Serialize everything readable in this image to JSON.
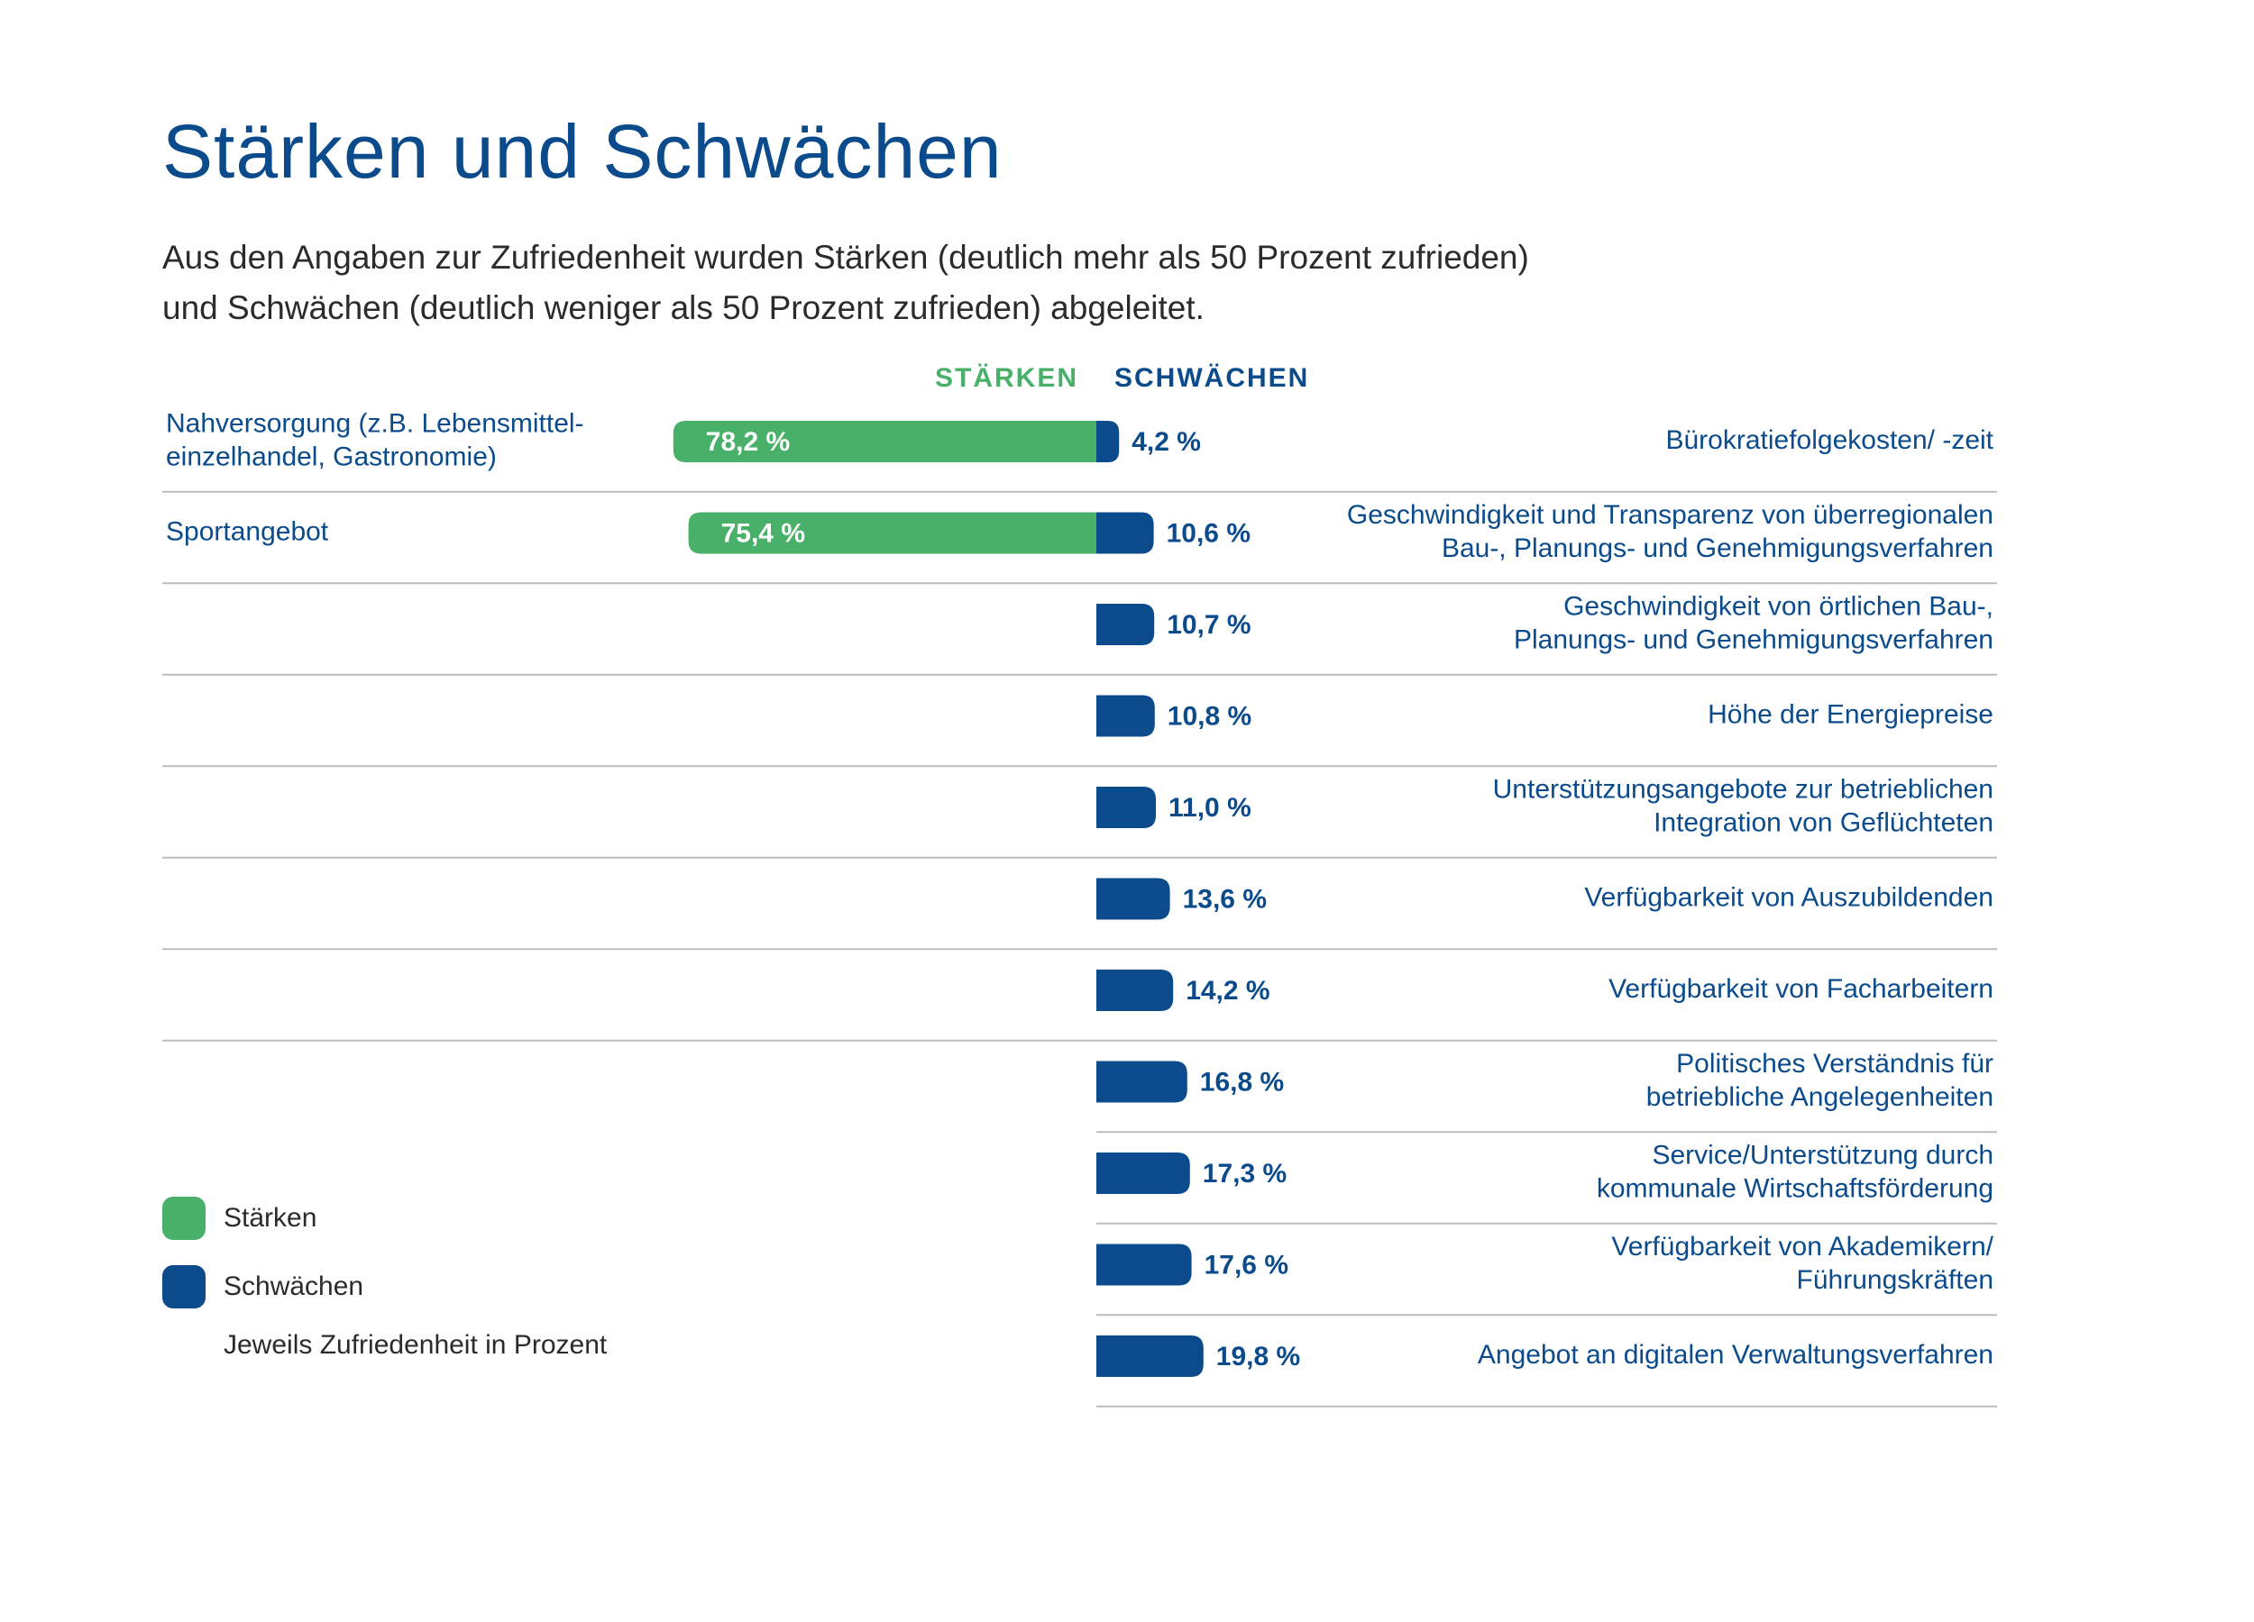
{
  "colors": {
    "strength": "#48b068",
    "weakness": "#0b4b8c",
    "text": "#0b4b8c",
    "line": "#bdbdbd"
  },
  "header": {
    "title": "Stärken und Schwächen",
    "subtitle_line1": "Aus den Angaben zur Zufriedenheit wurden Stärken (deutlich mehr als 50 Prozent zufrieden)",
    "subtitle_line2": "und Schwächen (deutlich weniger als 50 Prozent zufrieden) abgeleitet."
  },
  "legend": {
    "strengths": "Stärken",
    "weaknesses": "Schwächen",
    "note": "Jeweils Zufriedenheit in Prozent"
  },
  "chart_data": {
    "type": "bar",
    "column_headers": {
      "strengths": "STÄRKEN",
      "weaknesses": "SCHWÄCHEN"
    },
    "unit": "%",
    "strengths": [
      {
        "label": [
          "Nahversorgung (z.B. Lebensmittel-",
          "einzelhandel, Gastronomie)"
        ],
        "value": 78.2,
        "value_label": "78,2 %"
      },
      {
        "label": [
          "Sportangebot"
        ],
        "value": 75.4,
        "value_label": "75,4 %"
      }
    ],
    "weaknesses": [
      {
        "label": [
          "Bürokratiefolgekosten/ -zeit"
        ],
        "value": 4.2,
        "value_label": "4,2 %"
      },
      {
        "label": [
          "Geschwindigkeit und Transparenz von überregionalen",
          "Bau-, Planungs- und Genehmigungsverfahren"
        ],
        "value": 10.6,
        "value_label": "10,6 %"
      },
      {
        "label": [
          "Geschwindigkeit von örtlichen Bau-,",
          "Planungs- und Genehmigungsverfahren"
        ],
        "value": 10.7,
        "value_label": "10,7 %"
      },
      {
        "label": [
          "Höhe der Energiepreise"
        ],
        "value": 10.8,
        "value_label": "10,8 %"
      },
      {
        "label": [
          "Unterstützungsangebote zur betrieblichen",
          "Integration von Geflüchteten"
        ],
        "value": 11.0,
        "value_label": "11,0 %"
      },
      {
        "label": [
          "Verfügbarkeit von Auszubildenden"
        ],
        "value": 13.6,
        "value_label": "13,6 %"
      },
      {
        "label": [
          "Verfügbarkeit von Facharbeitern"
        ],
        "value": 14.2,
        "value_label": "14,2 %"
      },
      {
        "label": [
          "Politisches Verständnis für",
          "betriebliche Angelegenheiten"
        ],
        "value": 16.8,
        "value_label": "16,8 %"
      },
      {
        "label": [
          "Service/Unterstützung durch",
          "kommunale Wirtschaftsförderung"
        ],
        "value": 17.3,
        "value_label": "17,3 %"
      },
      {
        "label": [
          "Verfügbarkeit von Akademikern/",
          "Führungskräften"
        ],
        "value": 17.6,
        "value_label": "17,6 %"
      },
      {
        "label": [
          "Angebot an digitalen Verwaltungsverfahren"
        ],
        "value": 19.8,
        "value_label": "19,8 %"
      }
    ]
  }
}
